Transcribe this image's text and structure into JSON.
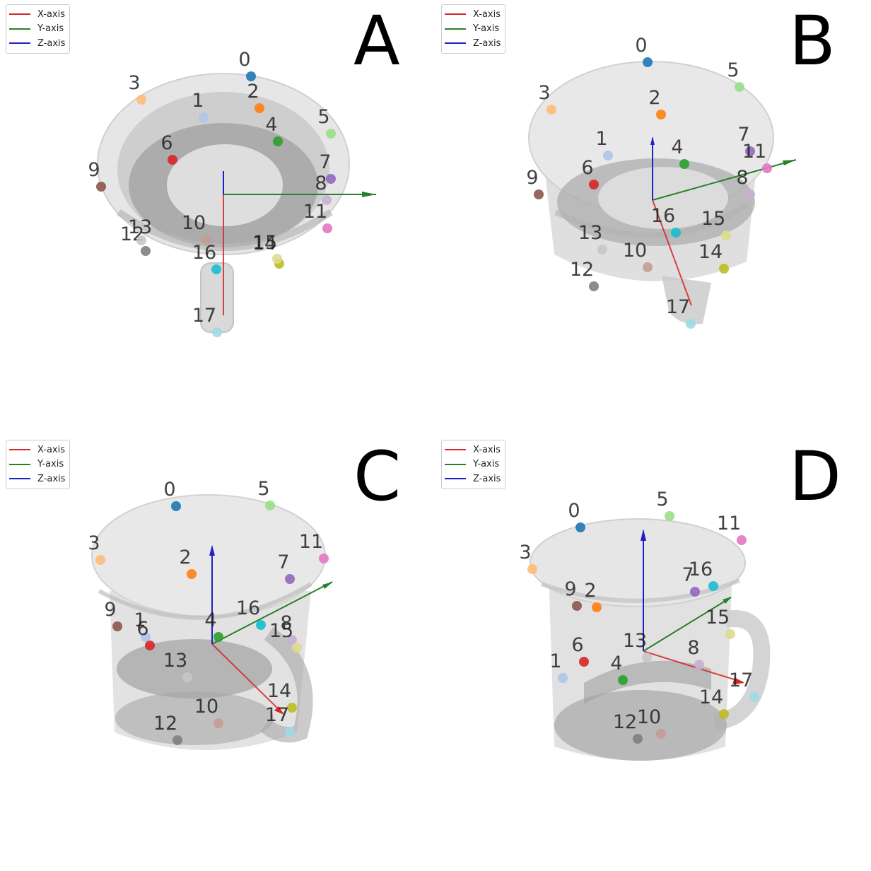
{
  "legend": {
    "x": {
      "label": "X-axis",
      "color": "#d62728"
    },
    "y": {
      "label": "Y-axis",
      "color": "#2a7f2a"
    },
    "z": {
      "label": "Z-axis",
      "color": "#2020c8"
    }
  },
  "point_colors": [
    "#1f77b4",
    "#aec7e8",
    "#ff7f0e",
    "#ffbb78",
    "#2ca02c",
    "#98df8a",
    "#d62728",
    "#9467bd",
    "#c5b0d5",
    "#8c564b",
    "#c49c94",
    "#e377c2",
    "#7f7f7f",
    "#c7c7c7",
    "#bcbd22",
    "#dbdb8d",
    "#17becf",
    "#9edae5"
  ],
  "panels": [
    {
      "letter": "A",
      "labels": [
        "0",
        "1",
        "2",
        "3",
        "4",
        "5",
        "6",
        "7",
        "8",
        "9",
        "10",
        "11",
        "12",
        "13",
        "14",
        "15",
        "16",
        "17"
      ]
    },
    {
      "letter": "B",
      "labels": [
        "0",
        "1",
        "2",
        "3",
        "4",
        "5",
        "6",
        "7",
        "8",
        "9",
        "10",
        "11",
        "12",
        "13",
        "14",
        "15",
        "16",
        "17"
      ]
    },
    {
      "letter": "C",
      "labels": [
        "0",
        "1",
        "2",
        "3",
        "4",
        "5",
        "6",
        "7",
        "8",
        "9",
        "10",
        "11",
        "12",
        "13",
        "14",
        "15",
        "16",
        "17"
      ]
    },
    {
      "letter": "D",
      "labels": [
        "0",
        "1",
        "2",
        "3",
        "4",
        "5",
        "6",
        "7",
        "8",
        "9",
        "10",
        "11",
        "12",
        "13",
        "14",
        "15",
        "16",
        "17"
      ]
    }
  ]
}
